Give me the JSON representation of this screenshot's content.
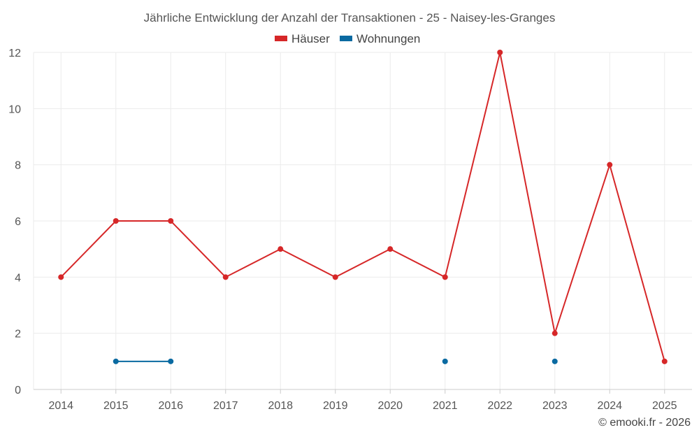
{
  "chart_data": {
    "type": "line",
    "title": "Jährliche Entwicklung der Anzahl der Transaktionen - 25 - Naisey-les-Granges",
    "categories": [
      "2014",
      "2015",
      "2016",
      "2017",
      "2018",
      "2019",
      "2020",
      "2021",
      "2022",
      "2023",
      "2024",
      "2025"
    ],
    "series": [
      {
        "name": "Häuser",
        "color": "#d62728",
        "values": [
          4,
          6,
          6,
          4,
          5,
          4,
          5,
          4,
          12,
          2,
          8,
          1
        ]
      },
      {
        "name": "Wohnungen",
        "color": "#0a6aa1",
        "values": [
          null,
          1,
          1,
          null,
          null,
          null,
          null,
          1,
          null,
          1,
          null,
          null
        ]
      }
    ],
    "ylim": [
      0,
      12
    ],
    "yticks": [
      0,
      2,
      4,
      6,
      8,
      10,
      12
    ],
    "grid": true,
    "legend_position": "top-center",
    "xlabel": "",
    "ylabel": ""
  },
  "credit": "© emooki.fr - 2026"
}
